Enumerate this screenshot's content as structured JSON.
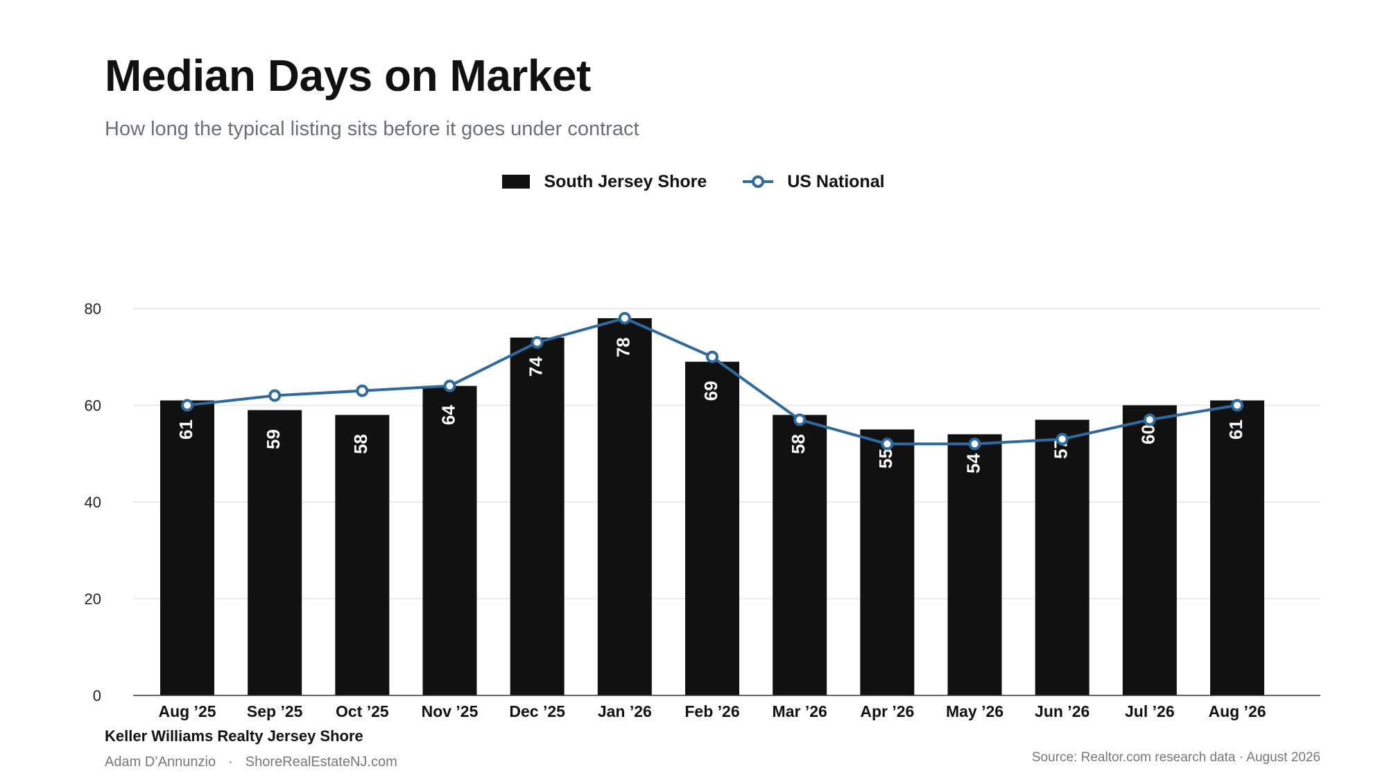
{
  "header": {
    "title": "Median Days on Market",
    "subtitle": "How long the typical listing sits before it goes under contract"
  },
  "legend": {
    "bar_label": "South Jersey Shore",
    "line_label": "US National"
  },
  "footer": {
    "brand": "Keller Williams Realty Jersey Shore",
    "author": "Adam D’Annunzio",
    "separator": "·",
    "website": "ShoreRealEstateNJ.com",
    "source": "Source: Realtor.com research data · August 2026"
  },
  "colors": {
    "bar": "#111111",
    "line": "#2f6a9e",
    "grid": "#e6e6e6",
    "axis": "#333333",
    "bar_label": "#ffffff"
  },
  "chart_data": {
    "type": "bar",
    "categories": [
      "Aug ’25",
      "Sep ’25",
      "Oct ’25",
      "Nov ’25",
      "Dec ’25",
      "Jan ’26",
      "Feb ’26",
      "Mar ’26",
      "Apr ’26",
      "May ’26",
      "Jun ’26",
      "Jul ’26",
      "Aug ’26"
    ],
    "series": [
      {
        "name": "South Jersey Shore",
        "type": "bar",
        "values": [
          61,
          59,
          58,
          64,
          74,
          78,
          69,
          58,
          55,
          54,
          57,
          60,
          61
        ]
      },
      {
        "name": "US National",
        "type": "line",
        "values": [
          60,
          62,
          63,
          64,
          73,
          78,
          70,
          57,
          52,
          52,
          53,
          57,
          60
        ]
      }
    ],
    "ylim": [
      0,
      80
    ],
    "yticks": [
      "0",
      "20",
      "40",
      "60",
      "80"
    ],
    "grid": true,
    "legend_position": "top-center",
    "data_labels": true
  }
}
